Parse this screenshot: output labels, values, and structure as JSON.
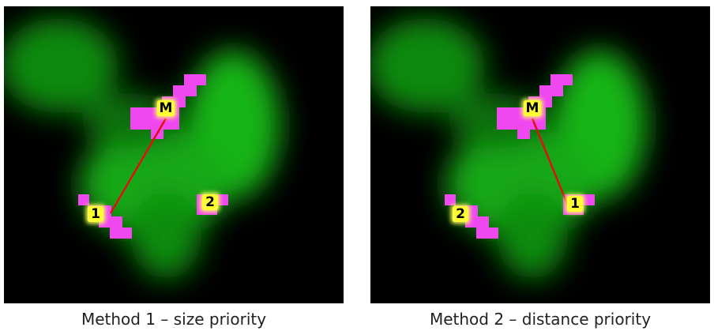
{
  "panels": [
    {
      "caption": "Method 1 – size priority",
      "markers": [
        "M",
        "1",
        "2"
      ]
    },
    {
      "caption": "Method 2 – distance priority",
      "markers": [
        "M",
        "2",
        "1"
      ]
    }
  ]
}
